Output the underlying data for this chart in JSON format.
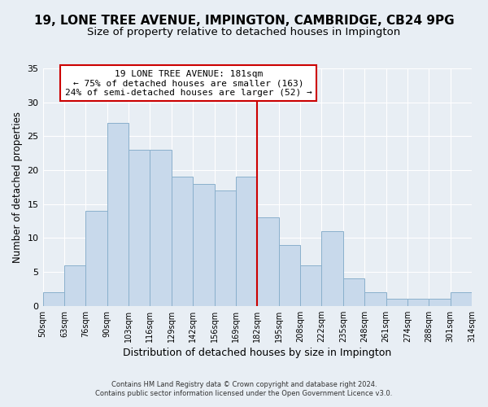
{
  "title": "19, LONE TREE AVENUE, IMPINGTON, CAMBRIDGE, CB24 9PG",
  "subtitle": "Size of property relative to detached houses in Impington",
  "xlabel": "Distribution of detached houses by size in Impington",
  "ylabel": "Number of detached properties",
  "footer_line1": "Contains HM Land Registry data © Crown copyright and database right 2024.",
  "footer_line2": "Contains public sector information licensed under the Open Government Licence v3.0.",
  "bin_labels": [
    "50sqm",
    "63sqm",
    "76sqm",
    "90sqm",
    "103sqm",
    "116sqm",
    "129sqm",
    "142sqm",
    "156sqm",
    "169sqm",
    "182sqm",
    "195sqm",
    "208sqm",
    "222sqm",
    "235sqm",
    "248sqm",
    "261sqm",
    "274sqm",
    "288sqm",
    "301sqm",
    "314sqm"
  ],
  "bar_values": [
    2,
    6,
    14,
    27,
    23,
    23,
    19,
    18,
    17,
    19,
    13,
    9,
    6,
    11,
    4,
    2,
    1,
    1,
    1,
    2
  ],
  "bar_color": "#c8d9eb",
  "bar_edge_color": "#8ab0cc",
  "reference_line_color": "#cc0000",
  "annotation_title": "19 LONE TREE AVENUE: 181sqm",
  "annotation_line1": "← 75% of detached houses are smaller (163)",
  "annotation_line2": "24% of semi-detached houses are larger (52) →",
  "annotation_box_facecolor": "white",
  "annotation_box_edgecolor": "#cc0000",
  "ylim": [
    0,
    35
  ],
  "yticks": [
    0,
    5,
    10,
    15,
    20,
    25,
    30,
    35
  ],
  "bg_color": "#e8eef4",
  "grid_color": "white",
  "title_fontsize": 11,
  "subtitle_fontsize": 9.5,
  "ref_bar_index": 10
}
